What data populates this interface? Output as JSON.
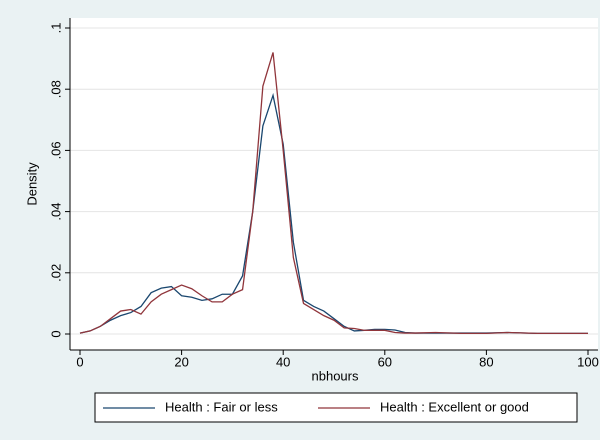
{
  "chart_data": {
    "type": "line",
    "x_label": "nbhours",
    "y_label": "Density",
    "x": [
      0,
      2,
      4,
      6,
      8,
      10,
      12,
      14,
      16,
      18,
      20,
      22,
      24,
      26,
      28,
      30,
      32,
      34,
      36,
      38,
      40,
      42,
      44,
      46,
      48,
      50,
      52,
      54,
      56,
      58,
      60,
      62,
      64,
      66,
      70,
      75,
      80,
      84,
      90,
      100
    ],
    "series": [
      {
        "name": "Health : Fair or less",
        "color": "#1a476f",
        "values": [
          0.0003,
          0.001,
          0.0025,
          0.0045,
          0.006,
          0.007,
          0.009,
          0.0135,
          0.015,
          0.0155,
          0.0125,
          0.012,
          0.011,
          0.0115,
          0.013,
          0.013,
          0.019,
          0.04,
          0.068,
          0.078,
          0.062,
          0.03,
          0.011,
          0.009,
          0.0075,
          0.005,
          0.0025,
          0.001,
          0.0012,
          0.0015,
          0.0015,
          0.0013,
          0.0005,
          0.0003,
          0.0003,
          0.0003,
          0.0003,
          0.0005,
          0.0002,
          0.0002
        ]
      },
      {
        "name": "Health : Excellent or good",
        "color": "#90353b",
        "values": [
          0.0003,
          0.001,
          0.0025,
          0.005,
          0.0075,
          0.008,
          0.0065,
          0.0105,
          0.013,
          0.0145,
          0.016,
          0.0148,
          0.0125,
          0.0105,
          0.0105,
          0.013,
          0.0145,
          0.04,
          0.081,
          0.092,
          0.06,
          0.025,
          0.01,
          0.008,
          0.006,
          0.0045,
          0.002,
          0.0018,
          0.0012,
          0.0012,
          0.0012,
          0.0005,
          0.0003,
          0.0003,
          0.0005,
          0.0002,
          0.0002,
          0.0005,
          0.0002,
          0.0002
        ]
      }
    ],
    "xlim": [
      0,
      100
    ],
    "xticks": [
      0,
      20,
      40,
      60,
      80,
      100
    ],
    "ylim": [
      0,
      0.1
    ],
    "yticks": [
      0,
      {
        "value": 0.02,
        "label": ".02"
      },
      {
        "value": 0.04,
        "label": ".04"
      },
      {
        "value": 0.06,
        "label": ".06"
      },
      {
        "value": 0.08,
        "label": ".08"
      },
      {
        "value": 0.1,
        "label": ".1"
      }
    ],
    "grid": true,
    "legend": "bottom"
  }
}
